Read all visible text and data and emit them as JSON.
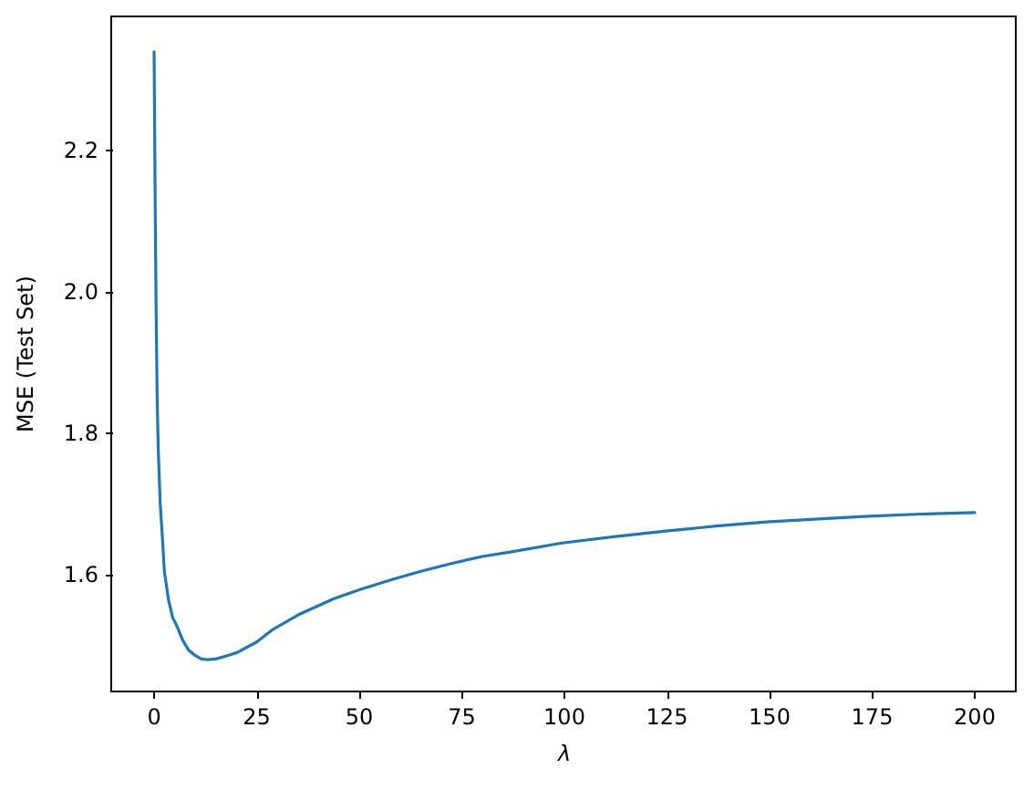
{
  "chart_data": {
    "type": "line",
    "xlabel": "λ",
    "ylabel": "MSE (Test Set)",
    "x": [
      0,
      0.15,
      0.3,
      0.5,
      0.75,
      1,
      1.5,
      2,
      2.5,
      3.5,
      4.5,
      5.6,
      7,
      8.5,
      10,
      11.5,
      12.9,
      15,
      17.5,
      20.2,
      25,
      29,
      35,
      43.7,
      50,
      58.4,
      65,
      73.1,
      80,
      86.5,
      99.4,
      112,
      124.7,
      137,
      149.3,
      162,
      174.2,
      187,
      200
    ],
    "series": [
      {
        "color": "#1f77b4",
        "values": [
          2.34,
          2.22,
          2.1,
          1.97,
          1.85,
          1.78,
          1.7,
          1.655,
          1.605,
          1.565,
          1.54,
          1.527,
          1.507,
          1.493,
          1.486,
          1.481,
          1.48,
          1.481,
          1.485,
          1.49,
          1.505,
          1.523,
          1.543,
          1.566,
          1.579,
          1.594,
          1.605,
          1.617,
          1.626,
          1.632,
          1.645,
          1.654,
          1.662,
          1.669,
          1.675,
          1.679,
          1.683,
          1.686,
          1.688
        ]
      }
    ],
    "xlim": [
      -10,
      210
    ],
    "xticks": [
      0,
      25,
      50,
      75,
      100,
      125,
      150,
      175,
      200
    ],
    "ylim": [
      1.435,
      2.39
    ],
    "yticks": [
      1.6,
      1.8,
      {
        "value": 2,
        "label": "2.0"
      },
      2.2
    ],
    "grid": false,
    "marker": "none",
    "line_style": "solid"
  }
}
